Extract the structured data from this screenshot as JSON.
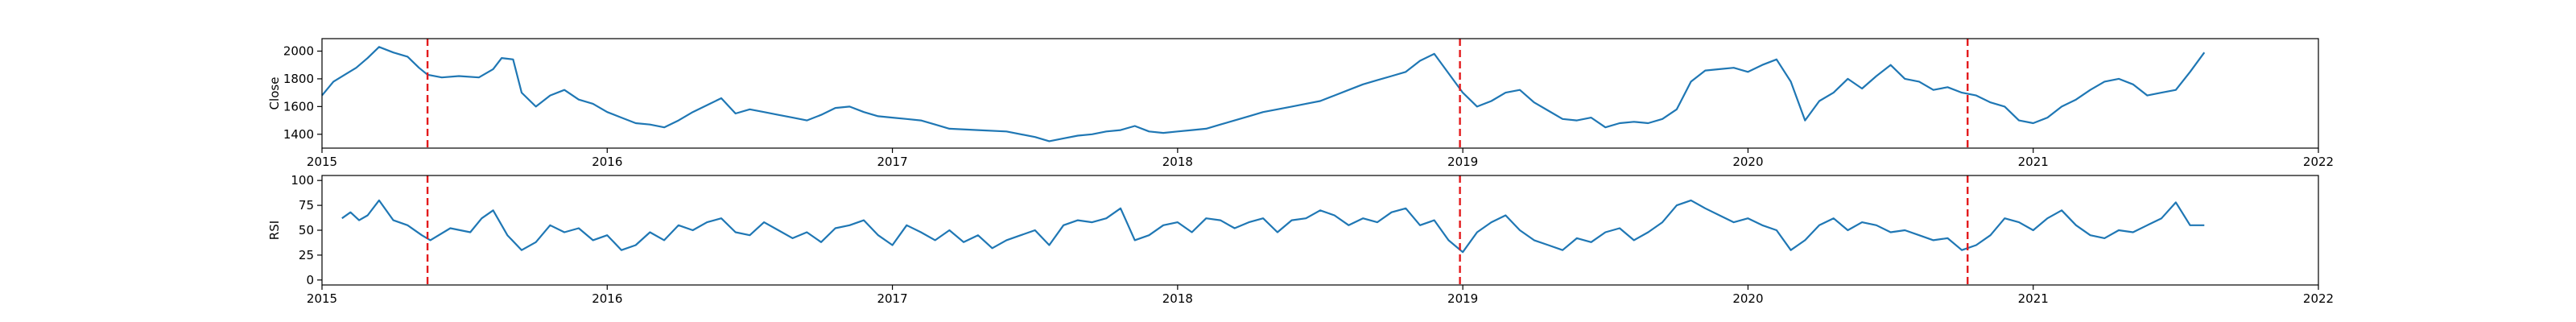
{
  "chart_data": [
    {
      "type": "line",
      "ylabel": "Close",
      "xlim": [
        2015.0,
        2022.0
      ],
      "ylim": [
        1300,
        2090
      ],
      "xticks": [
        2015,
        2016,
        2017,
        2018,
        2019,
        2020,
        2021,
        2022
      ],
      "xtick_labels": [
        "2015",
        "2016",
        "2017",
        "2018",
        "2019",
        "2020",
        "2021",
        "2022"
      ],
      "yticks": [
        1400,
        1600,
        1800,
        2000
      ],
      "ytick_labels": [
        "1400",
        "1600",
        "1800",
        "2000"
      ],
      "series": [
        {
          "color": "#1f77b4",
          "x": [
            2015.0,
            2015.04,
            2015.08,
            2015.12,
            2015.16,
            2015.2,
            2015.25,
            2015.3,
            2015.34,
            2015.37,
            2015.42,
            2015.48,
            2015.55,
            2015.6,
            2015.63,
            2015.67,
            2015.7,
            2015.75,
            2015.8,
            2015.85,
            2015.9,
            2015.95,
            2016.0,
            2016.05,
            2016.1,
            2016.15,
            2016.2,
            2016.25,
            2016.3,
            2016.35,
            2016.4,
            2016.45,
            2016.5,
            2016.55,
            2016.6,
            2016.65,
            2016.7,
            2016.75,
            2016.8,
            2016.85,
            2016.9,
            2016.95,
            2017.0,
            2017.05,
            2017.1,
            2017.15,
            2017.2,
            2017.3,
            2017.4,
            2017.5,
            2017.55,
            2017.6,
            2017.65,
            2017.7,
            2017.75,
            2017.8,
            2017.85,
            2017.9,
            2017.95,
            2018.0,
            2018.05,
            2018.1,
            2018.15,
            2018.2,
            2018.25,
            2018.3,
            2018.35,
            2018.4,
            2018.45,
            2018.5,
            2018.55,
            2018.6,
            2018.65,
            2018.7,
            2018.75,
            2018.8,
            2018.85,
            2018.9,
            2018.95,
            2019.0,
            2019.05,
            2019.1,
            2019.15,
            2019.2,
            2019.25,
            2019.3,
            2019.35,
            2019.4,
            2019.45,
            2019.5,
            2019.55,
            2019.6,
            2019.65,
            2019.7,
            2019.75,
            2019.8,
            2019.85,
            2019.9,
            2019.95,
            2020.0,
            2020.05,
            2020.1,
            2020.15,
            2020.2,
            2020.25,
            2020.3,
            2020.35,
            2020.4,
            2020.45,
            2020.5,
            2020.55,
            2020.6,
            2020.65,
            2020.7,
            2020.75,
            2020.8,
            2020.85,
            2020.9,
            2020.95,
            2021.0,
            2021.05,
            2021.1,
            2021.15,
            2021.2,
            2021.25,
            2021.3,
            2021.35,
            2021.4,
            2021.45,
            2021.5,
            2021.55,
            2021.6
          ],
          "y": [
            1680,
            1780,
            1830,
            1880,
            1950,
            2030,
            1990,
            1960,
            1880,
            1830,
            1810,
            1820,
            1810,
            1870,
            1950,
            1940,
            1700,
            1600,
            1680,
            1720,
            1650,
            1620,
            1560,
            1520,
            1480,
            1470,
            1450,
            1500,
            1560,
            1610,
            1660,
            1550,
            1580,
            1560,
            1540,
            1520,
            1500,
            1540,
            1590,
            1600,
            1560,
            1530,
            1520,
            1510,
            1500,
            1470,
            1440,
            1430,
            1420,
            1380,
            1350,
            1370,
            1390,
            1400,
            1420,
            1430,
            1460,
            1420,
            1410,
            1420,
            1430,
            1440,
            1470,
            1500,
            1530,
            1560,
            1580,
            1600,
            1620,
            1640,
            1680,
            1720,
            1760,
            1790,
            1820,
            1850,
            1930,
            1980,
            1840,
            1700,
            1600,
            1640,
            1700,
            1720,
            1630,
            1570,
            1510,
            1500,
            1520,
            1450,
            1480,
            1490,
            1480,
            1510,
            1580,
            1780,
            1860,
            1870,
            1880,
            1850,
            1900,
            1940,
            1780,
            1500,
            1640,
            1700,
            1800,
            1730,
            1820,
            1900,
            1800,
            1780,
            1720,
            1740,
            1700,
            1680,
            1630,
            1600,
            1500,
            1480,
            1520,
            1600,
            1650,
            1720,
            1780,
            1800,
            1760,
            1680,
            1700,
            1720,
            1850,
            1990
          ]
        }
      ],
      "vlines": [
        2015.37,
        2018.99,
        2020.77
      ]
    },
    {
      "type": "line",
      "ylabel": "RSI",
      "xlim": [
        2015.0,
        2022.0
      ],
      "ylim": [
        -5,
        105
      ],
      "xticks": [
        2015,
        2016,
        2017,
        2018,
        2019,
        2020,
        2021,
        2022
      ],
      "xtick_labels": [
        "2015",
        "2016",
        "2017",
        "2018",
        "2019",
        "2020",
        "2021",
        "2022"
      ],
      "yticks": [
        0,
        25,
        50,
        75,
        100
      ],
      "ytick_labels": [
        "0",
        "25",
        "50",
        "75",
        "100"
      ],
      "series": [
        {
          "color": "#1f77b4",
          "x": [
            2015.07,
            2015.1,
            2015.13,
            2015.16,
            2015.2,
            2015.25,
            2015.3,
            2015.35,
            2015.38,
            2015.45,
            2015.52,
            2015.56,
            2015.6,
            2015.65,
            2015.7,
            2015.75,
            2015.8,
            2015.85,
            2015.9,
            2015.95,
            2016.0,
            2016.05,
            2016.1,
            2016.15,
            2016.2,
            2016.25,
            2016.3,
            2016.35,
            2016.4,
            2016.45,
            2016.5,
            2016.55,
            2016.6,
            2016.65,
            2016.7,
            2016.75,
            2016.8,
            2016.85,
            2016.9,
            2016.95,
            2017.0,
            2017.05,
            2017.1,
            2017.15,
            2017.2,
            2017.25,
            2017.3,
            2017.35,
            2017.4,
            2017.45,
            2017.5,
            2017.55,
            2017.6,
            2017.65,
            2017.7,
            2017.75,
            2017.8,
            2017.85,
            2017.9,
            2017.95,
            2018.0,
            2018.05,
            2018.1,
            2018.15,
            2018.2,
            2018.25,
            2018.3,
            2018.35,
            2018.4,
            2018.45,
            2018.5,
            2018.55,
            2018.6,
            2018.65,
            2018.7,
            2018.75,
            2018.8,
            2018.85,
            2018.9,
            2018.95,
            2019.0,
            2019.05,
            2019.1,
            2019.15,
            2019.2,
            2019.25,
            2019.3,
            2019.35,
            2019.4,
            2019.45,
            2019.5,
            2019.55,
            2019.6,
            2019.65,
            2019.7,
            2019.75,
            2019.8,
            2019.85,
            2019.9,
            2019.95,
            2020.0,
            2020.05,
            2020.1,
            2020.15,
            2020.2,
            2020.25,
            2020.3,
            2020.35,
            2020.4,
            2020.45,
            2020.5,
            2020.55,
            2020.6,
            2020.65,
            2020.7,
            2020.75,
            2020.8,
            2020.85,
            2020.9,
            2020.95,
            2021.0,
            2021.05,
            2021.1,
            2021.15,
            2021.2,
            2021.25,
            2021.3,
            2021.35,
            2021.4,
            2021.45,
            2021.5,
            2021.55,
            2021.6
          ],
          "y": [
            62,
            68,
            60,
            65,
            80,
            60,
            55,
            45,
            40,
            52,
            48,
            62,
            70,
            45,
            30,
            38,
            55,
            48,
            52,
            40,
            45,
            30,
            35,
            48,
            40,
            55,
            50,
            58,
            62,
            48,
            45,
            58,
            50,
            42,
            48,
            38,
            52,
            55,
            60,
            45,
            35,
            55,
            48,
            40,
            50,
            38,
            45,
            32,
            40,
            45,
            50,
            35,
            55,
            60,
            58,
            62,
            72,
            40,
            45,
            55,
            58,
            48,
            62,
            60,
            52,
            58,
            62,
            48,
            60,
            62,
            70,
            65,
            55,
            62,
            58,
            68,
            72,
            55,
            60,
            40,
            28,
            48,
            58,
            65,
            50,
            40,
            35,
            30,
            42,
            38,
            48,
            52,
            40,
            48,
            58,
            75,
            80,
            72,
            65,
            58,
            62,
            55,
            50,
            30,
            40,
            55,
            62,
            50,
            58,
            55,
            48,
            50,
            45,
            40,
            42,
            30,
            35,
            45,
            62,
            58,
            50,
            62,
            70,
            55,
            45,
            42,
            50,
            48,
            55,
            62,
            78,
            55,
            55
          ]
        }
      ],
      "vlines": [
        2015.37,
        2018.99,
        2020.77
      ]
    }
  ]
}
